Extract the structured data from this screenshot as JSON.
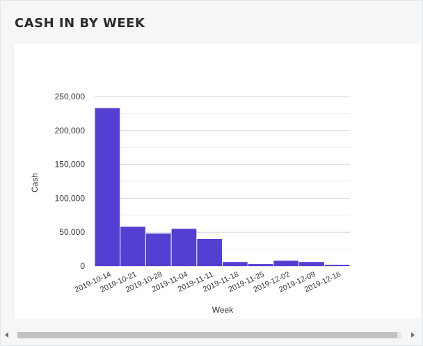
{
  "card": {
    "title": "CASH IN BY WEEK"
  },
  "chart_data": {
    "type": "bar",
    "title": "",
    "xlabel": "Week",
    "ylabel": "Cash",
    "ylim": [
      0,
      250000
    ],
    "yticks": [
      0,
      50000,
      100000,
      150000,
      200000,
      250000
    ],
    "ytick_labels": [
      "0",
      "50,000",
      "100,000",
      "150,000",
      "200,000",
      "250,000"
    ],
    "categories": [
      "2019-10-14",
      "2019-10-21",
      "2019-10-28",
      "2019-11-04",
      "2019-11-11",
      "2019-11-18",
      "2019-11-25",
      "2019-12-02",
      "2019-12-09",
      "2019-12-16"
    ],
    "values": [
      233000,
      58000,
      48000,
      55000,
      40000,
      6000,
      3000,
      8000,
      6000,
      2000
    ],
    "bar_color": "#5340d3",
    "grid": true,
    "legend": "none"
  },
  "scrollbar": {
    "left_arrow": "arrow-left-icon",
    "right_arrow": "arrow-right-icon"
  }
}
